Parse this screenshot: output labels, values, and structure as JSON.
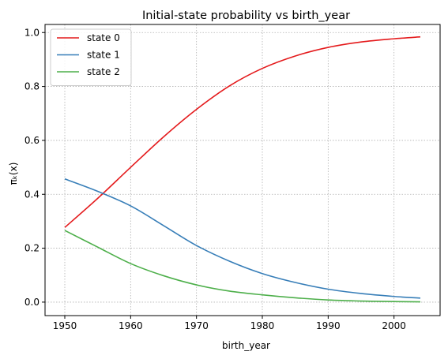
{
  "chart_data": {
    "type": "line",
    "title": "Initial-state probability vs birth_year",
    "xlabel": "birth_year",
    "ylabel": "πₖ(x)",
    "xlim": [
      1947,
      2007
    ],
    "ylim": [
      -0.05,
      1.03
    ],
    "xticks": [
      1950,
      1960,
      1970,
      1980,
      1990,
      2000
    ],
    "yticks": [
      0.0,
      0.2,
      0.4,
      0.6,
      0.8,
      1.0
    ],
    "ytick_labels": [
      "0.0",
      "0.2",
      "0.4",
      "0.6",
      "0.8",
      "1.0"
    ],
    "xtick_labels": [
      "1950",
      "1960",
      "1970",
      "1980",
      "1990",
      "2000"
    ],
    "grid": true,
    "legend_position": "upper-left",
    "x": [
      1950,
      1955,
      1960,
      1965,
      1970,
      1975,
      1980,
      1985,
      1990,
      1995,
      2000,
      2004
    ],
    "series": [
      {
        "name": "state 0",
        "color": "#e41a1c",
        "values": [
          0.277,
          0.385,
          0.5,
          0.613,
          0.715,
          0.802,
          0.867,
          0.913,
          0.945,
          0.965,
          0.977,
          0.984
        ]
      },
      {
        "name": "state 1",
        "color": "#377eb8",
        "values": [
          0.457,
          0.411,
          0.357,
          0.284,
          0.21,
          0.152,
          0.106,
          0.073,
          0.048,
          0.032,
          0.021,
          0.015
        ]
      },
      {
        "name": "state 2",
        "color": "#4daf4a",
        "values": [
          0.266,
          0.204,
          0.143,
          0.098,
          0.064,
          0.041,
          0.027,
          0.016,
          0.008,
          0.004,
          0.002,
          0.001
        ]
      }
    ]
  }
}
